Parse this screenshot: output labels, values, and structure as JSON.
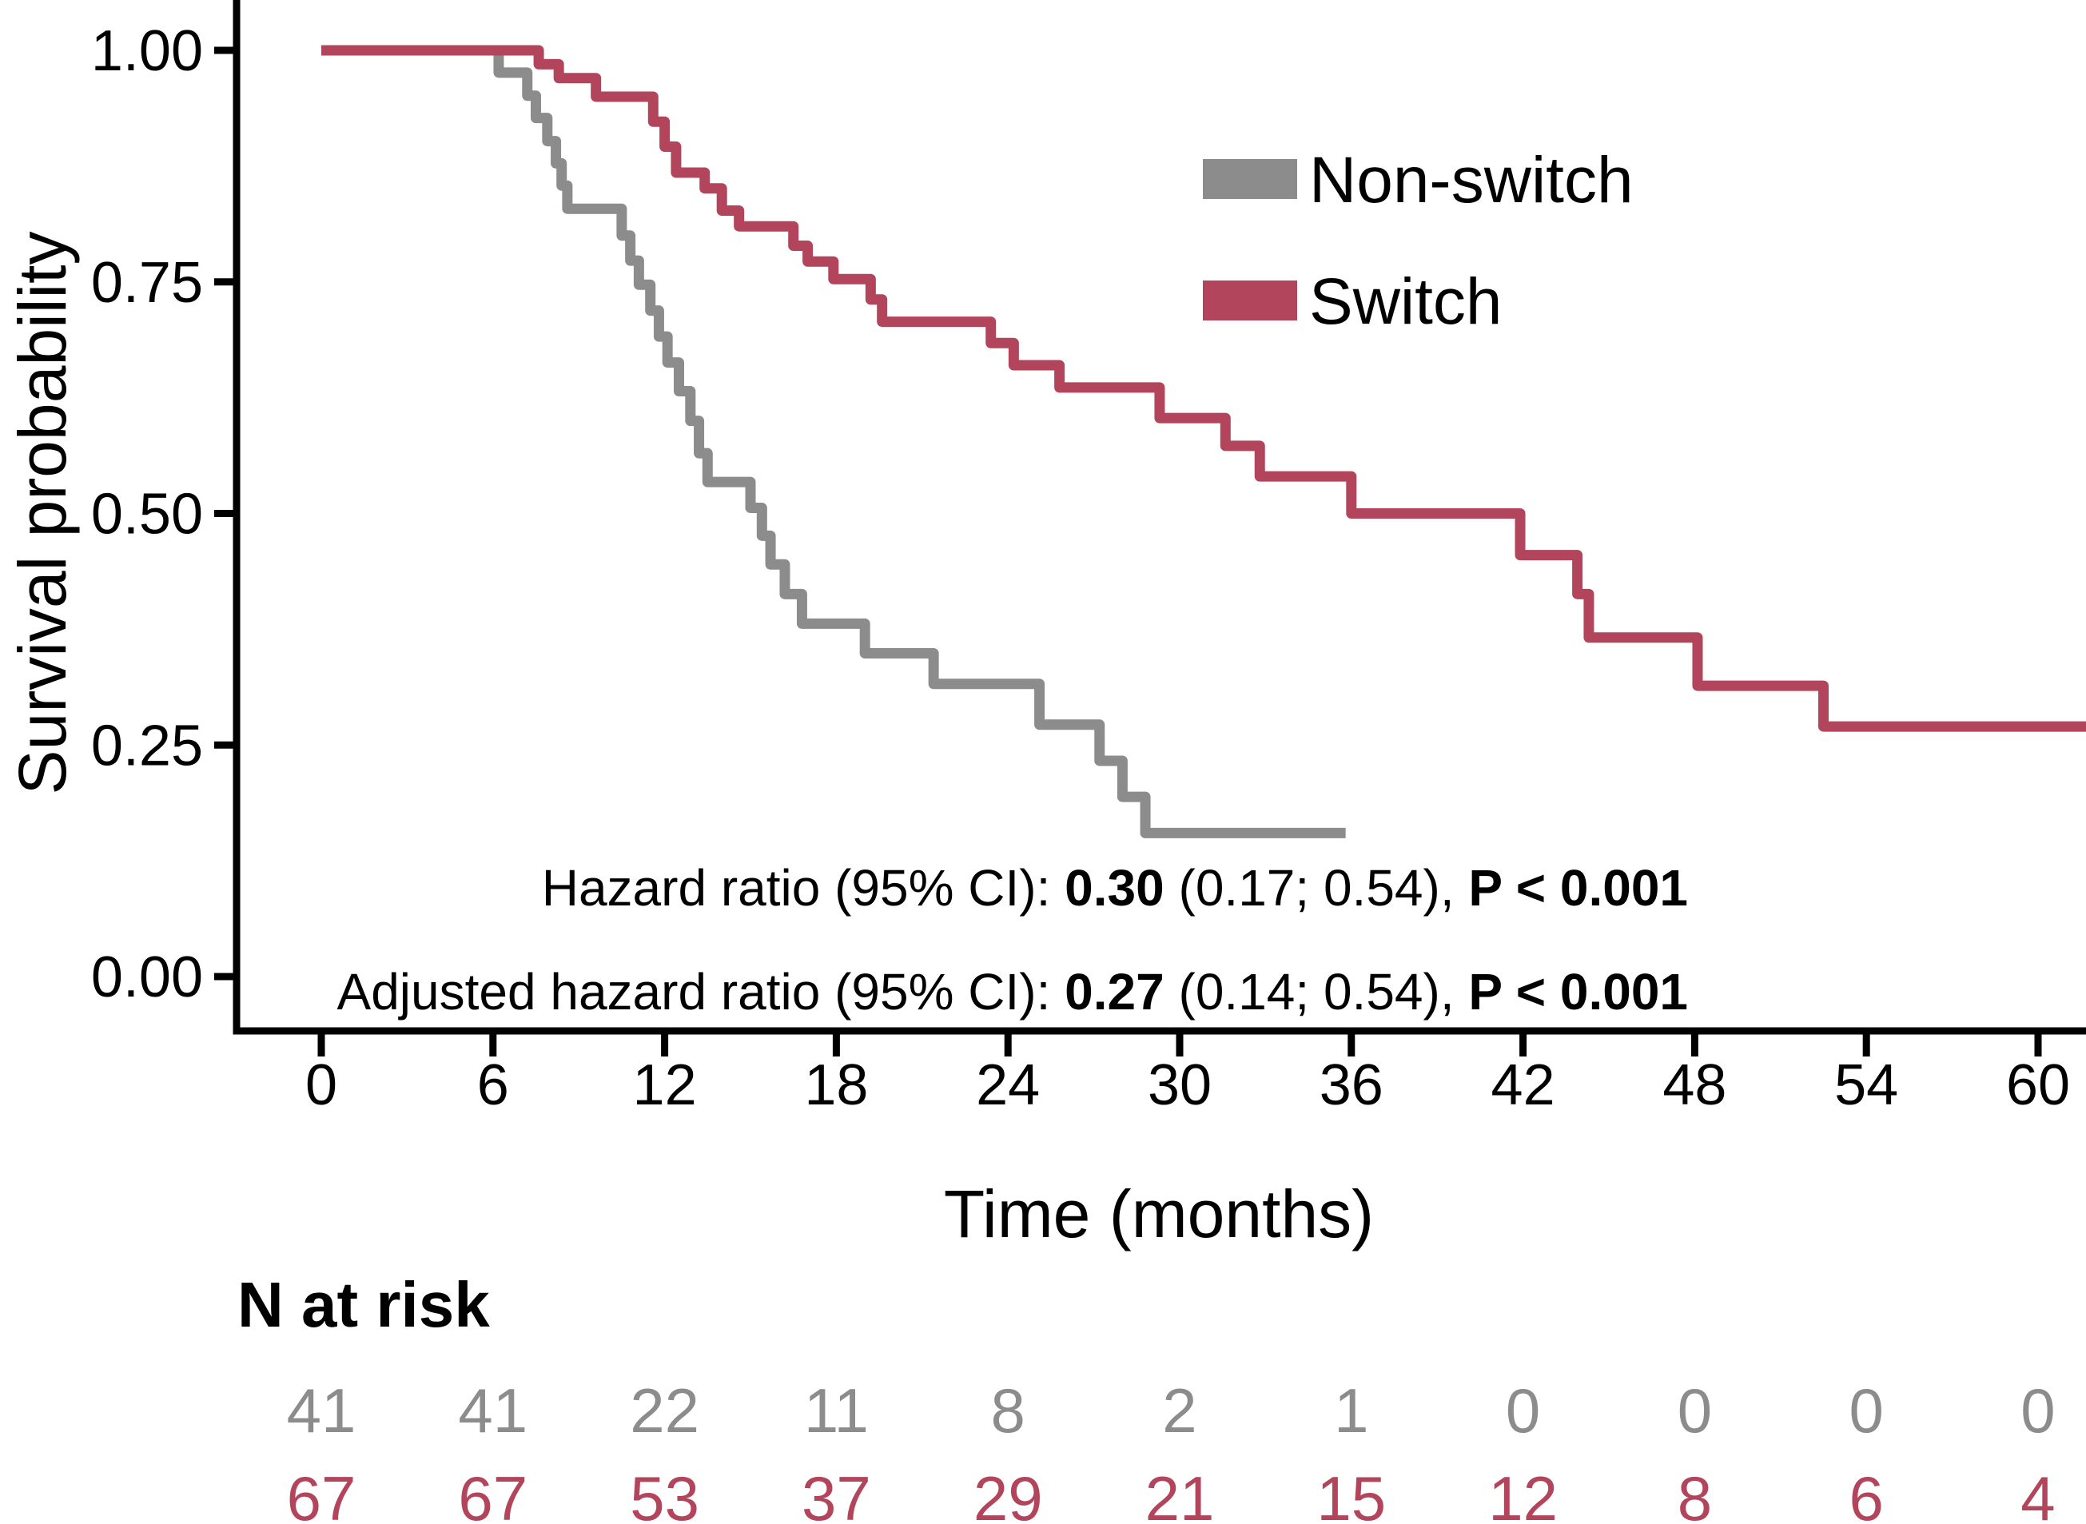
{
  "figure": {
    "background": "#ffffff",
    "text_color": "#000000"
  },
  "chart_data": {
    "type": "line",
    "subtype": "kaplan-meier-step",
    "title": "",
    "xlabel": "Time (months)",
    "ylabel": "Survival probability",
    "xlim": [
      0,
      62
    ],
    "ylim": [
      0.0,
      1.0
    ],
    "grid": false,
    "x_ticks": [
      0,
      6,
      12,
      18,
      24,
      30,
      36,
      42,
      48,
      54,
      60
    ],
    "y_ticks": [
      {
        "value": 1.0,
        "label": "1.00"
      },
      {
        "value": 0.75,
        "label": "0.75"
      },
      {
        "value": 0.5,
        "label": "0.50"
      },
      {
        "value": 0.25,
        "label": "0.25"
      },
      {
        "value": 0.0,
        "label": "0.00"
      }
    ],
    "legend": {
      "position": "top-right"
    },
    "series": [
      {
        "name": "Non-switch",
        "color": "#8c8c8c",
        "end_time": 35.8,
        "steps": [
          [
            0,
            1.0
          ],
          [
            6.2,
            0.976
          ],
          [
            7.2,
            0.951
          ],
          [
            7.5,
            0.927
          ],
          [
            7.9,
            0.902
          ],
          [
            8.2,
            0.878
          ],
          [
            8.4,
            0.854
          ],
          [
            8.6,
            0.829
          ],
          [
            10.5,
            0.8
          ],
          [
            10.8,
            0.773
          ],
          [
            11.1,
            0.747
          ],
          [
            11.5,
            0.719
          ],
          [
            11.8,
            0.691
          ],
          [
            12.1,
            0.663
          ],
          [
            12.5,
            0.632
          ],
          [
            12.9,
            0.6
          ],
          [
            13.2,
            0.565
          ],
          [
            13.5,
            0.534
          ],
          [
            15.0,
            0.506
          ],
          [
            15.4,
            0.476
          ],
          [
            15.7,
            0.445
          ],
          [
            16.2,
            0.413
          ],
          [
            16.8,
            0.381
          ],
          [
            19.0,
            0.349
          ],
          [
            21.4,
            0.316
          ],
          [
            25.1,
            0.272
          ],
          [
            27.2,
            0.233
          ],
          [
            28.0,
            0.194
          ],
          [
            28.8,
            0.155
          ]
        ]
      },
      {
        "name": "Switch",
        "color": "#b2455b",
        "end_time": 61.7,
        "steps": [
          [
            0,
            1.0
          ],
          [
            7.6,
            0.985
          ],
          [
            8.3,
            0.97
          ],
          [
            9.6,
            0.95
          ],
          [
            11.6,
            0.923
          ],
          [
            12.0,
            0.896
          ],
          [
            12.4,
            0.868
          ],
          [
            13.4,
            0.851
          ],
          [
            14.0,
            0.827
          ],
          [
            14.6,
            0.81
          ],
          [
            16.5,
            0.789
          ],
          [
            17.0,
            0.772
          ],
          [
            17.9,
            0.753
          ],
          [
            19.2,
            0.731
          ],
          [
            19.6,
            0.707
          ],
          [
            23.4,
            0.684
          ],
          [
            24.2,
            0.66
          ],
          [
            25.8,
            0.636
          ],
          [
            29.3,
            0.603
          ],
          [
            31.6,
            0.573
          ],
          [
            32.8,
            0.54
          ],
          [
            36.0,
            0.5
          ],
          [
            41.9,
            0.455
          ],
          [
            43.9,
            0.413
          ],
          [
            44.3,
            0.366
          ],
          [
            48.1,
            0.314
          ],
          [
            52.5,
            0.27
          ]
        ]
      }
    ],
    "annotations": [
      {
        "parts": [
          {
            "text": "Hazard ratio (95% CI): ",
            "bold": false
          },
          {
            "text": "0.30",
            "bold": true
          },
          {
            "text": " (0.17; 0.54), ",
            "bold": false
          },
          {
            "text": "P < 0.001",
            "bold": true
          }
        ]
      },
      {
        "parts": [
          {
            "text": "Adjusted hazard ratio (95% CI): ",
            "bold": false
          },
          {
            "text": "0.27",
            "bold": true
          },
          {
            "text": " (0.14; 0.54), ",
            "bold": false
          },
          {
            "text": "P < 0.001",
            "bold": true
          }
        ]
      }
    ],
    "risk_table": {
      "title": "N at risk",
      "time_points": [
        0,
        6,
        12,
        18,
        24,
        30,
        36,
        42,
        48,
        54,
        60
      ],
      "rows": [
        {
          "name": "Non-switch",
          "color": "#8c8c8c",
          "values": [
            41,
            41,
            22,
            11,
            8,
            2,
            1,
            0,
            0,
            0,
            0
          ]
        },
        {
          "name": "Switch",
          "color": "#b2455b",
          "values": [
            67,
            67,
            53,
            37,
            29,
            21,
            15,
            12,
            8,
            6,
            4
          ]
        }
      ]
    }
  }
}
